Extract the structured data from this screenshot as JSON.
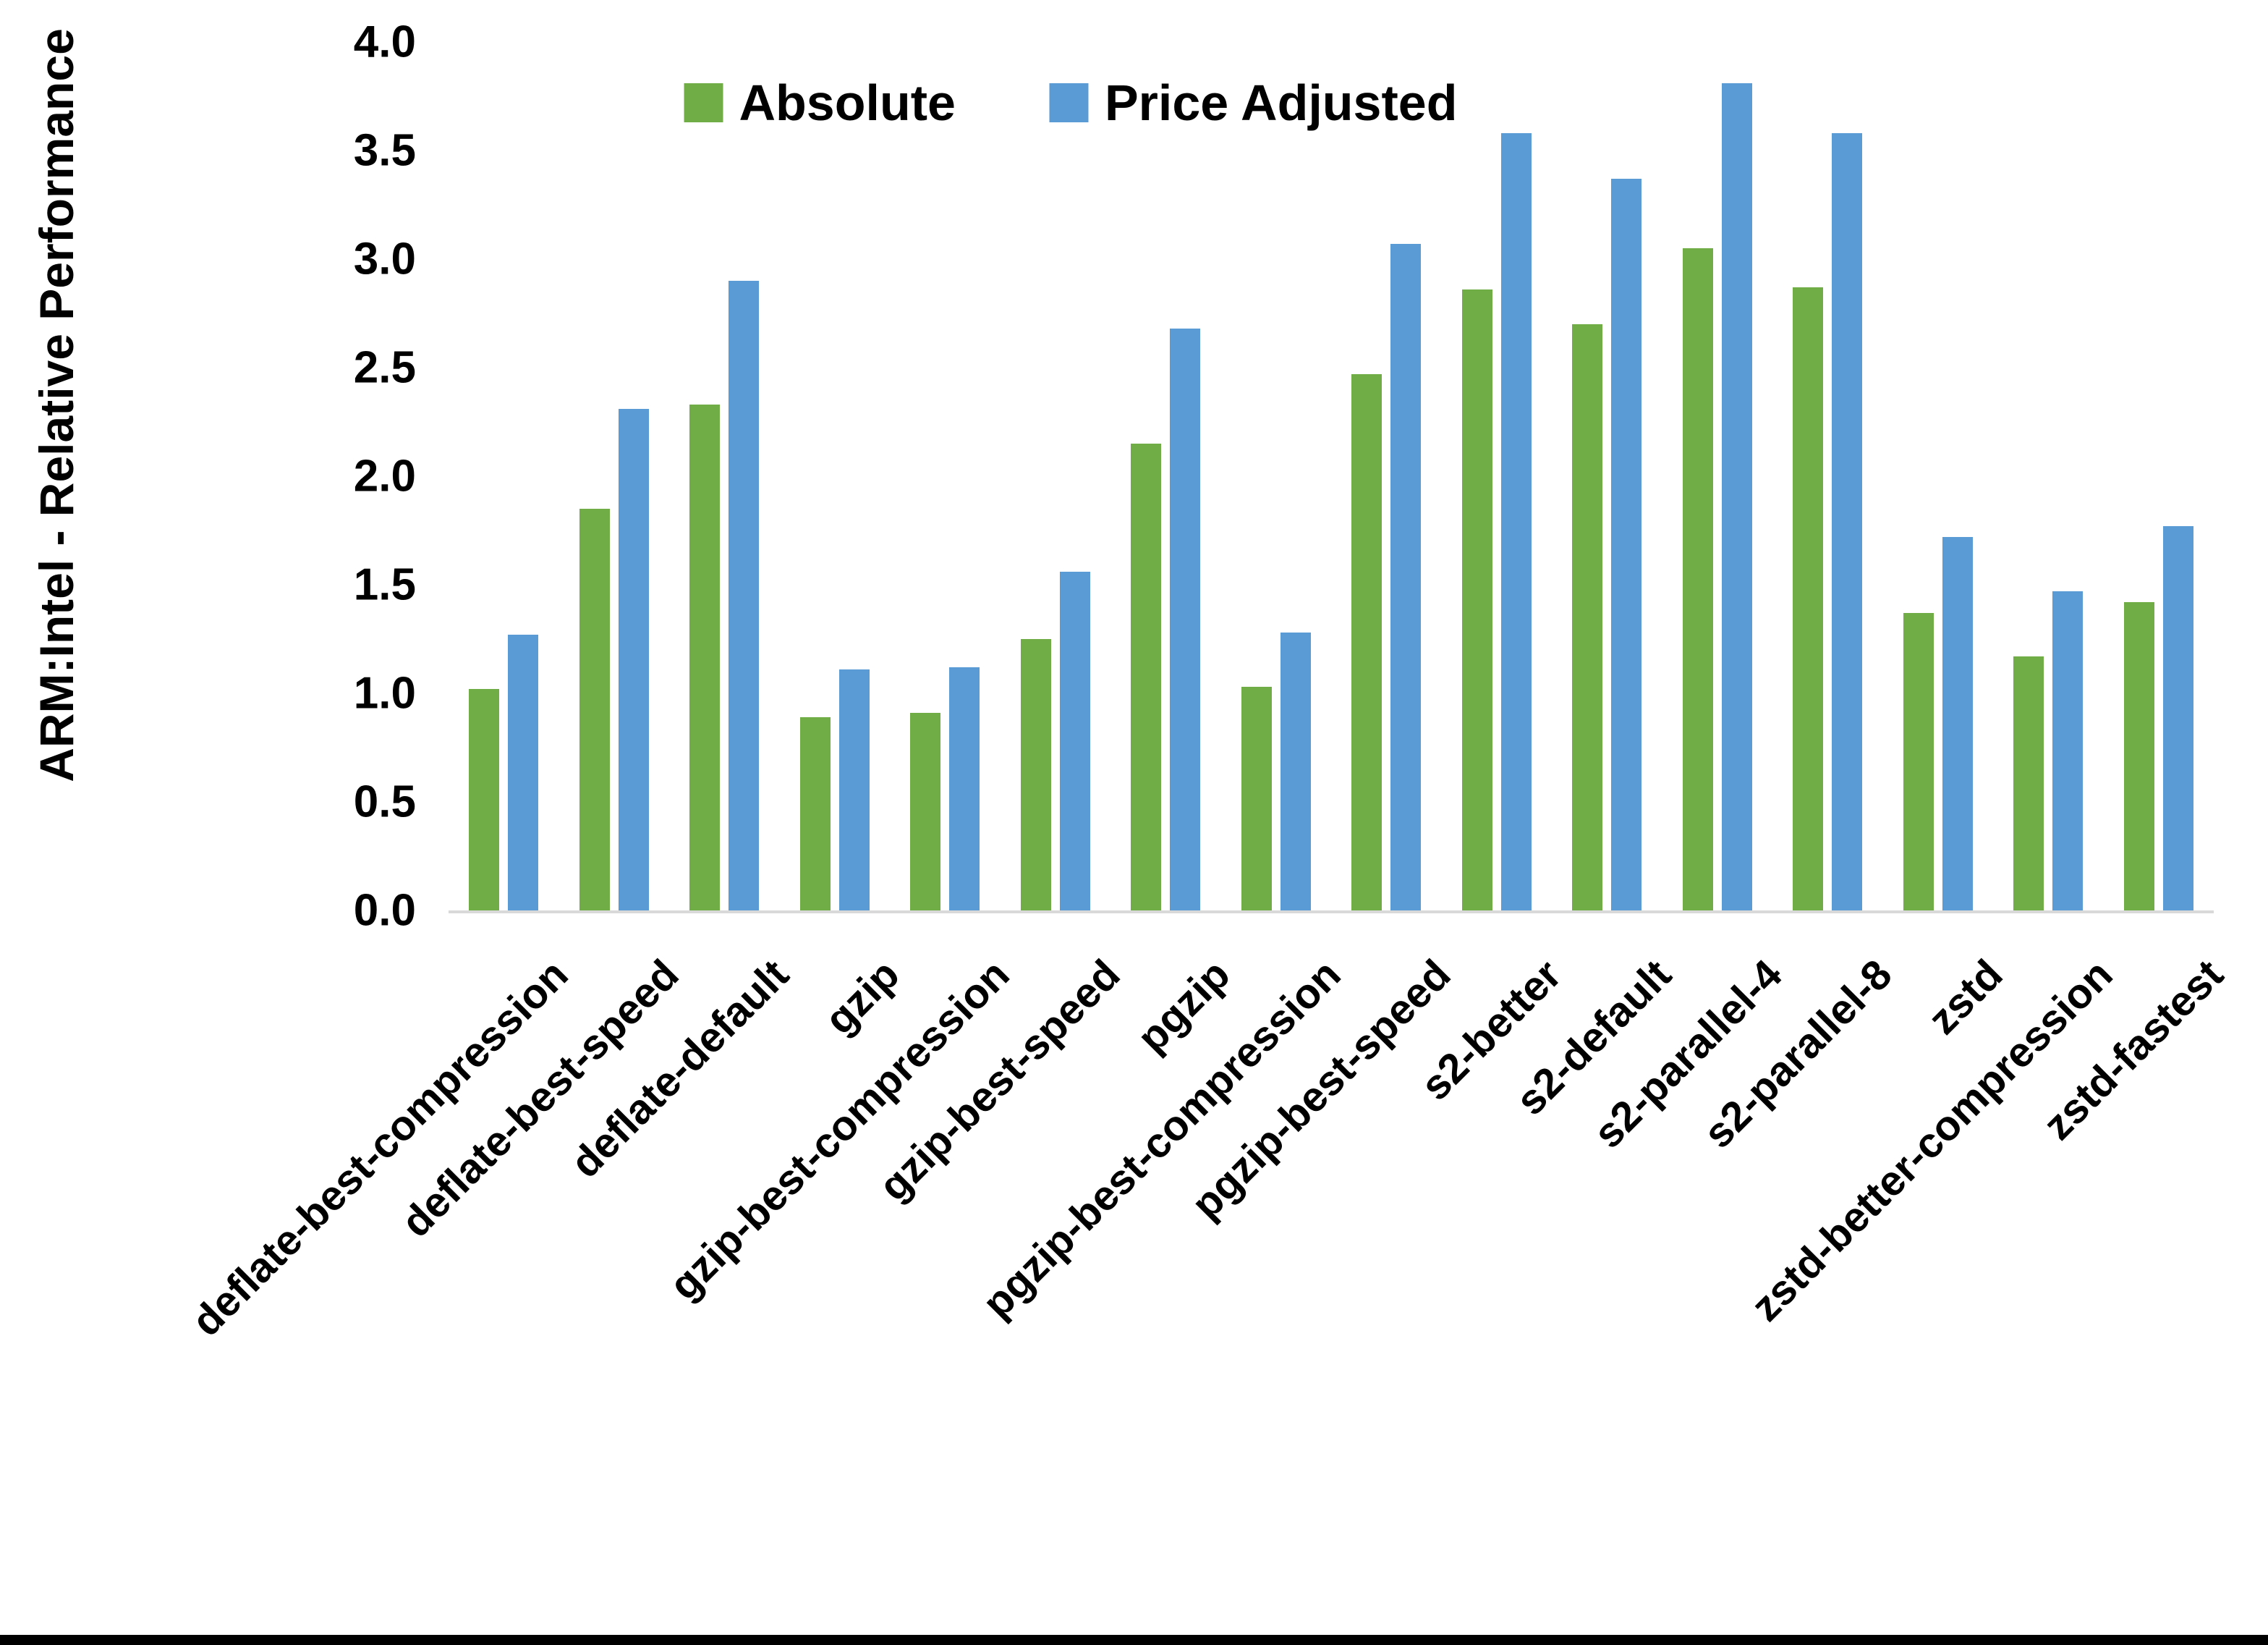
{
  "figure": {
    "background": "#ffffff",
    "bottom_border_color": "#000000",
    "axis_line_color": "#d9d9d9",
    "text_color": "#000000"
  },
  "chart_data": {
    "type": "bar",
    "title": "",
    "xlabel": "",
    "ylabel": "ARM:Intel - Relative Performance",
    "ylim": [
      0,
      4
    ],
    "yticks": [
      "0.0",
      "0.5",
      "1.0",
      "1.5",
      "2.0",
      "2.5",
      "3.0",
      "3.5",
      "4.0"
    ],
    "grid": false,
    "legend_position": "top-center",
    "categories": [
      "deflate-best-compression",
      "deflate-best-speed",
      "deflate-default",
      "gzip",
      "gzip-best-compression",
      "gzip-best-speed",
      "pgzip",
      "pgzip-best-compression",
      "pgzip-best-speed",
      "s2-better",
      "s2-default",
      "s2-parallel-4",
      "s2-parallel-8",
      "zstd",
      "zstd-better-compression",
      "zstd-fastest"
    ],
    "series": [
      {
        "name": "Absolute",
        "color": "#70AD47",
        "values": [
          1.02,
          1.85,
          2.33,
          0.89,
          0.91,
          1.25,
          2.15,
          1.03,
          2.47,
          2.86,
          2.7,
          3.05,
          2.87,
          1.37,
          1.17,
          1.42
        ]
      },
      {
        "name": "Price Adjusted",
        "color": "#5B9BD5",
        "values": [
          1.27,
          2.31,
          2.9,
          1.11,
          1.12,
          1.56,
          2.68,
          1.28,
          3.07,
          3.58,
          3.37,
          3.81,
          3.58,
          1.72,
          1.47,
          1.77
        ]
      }
    ]
  }
}
